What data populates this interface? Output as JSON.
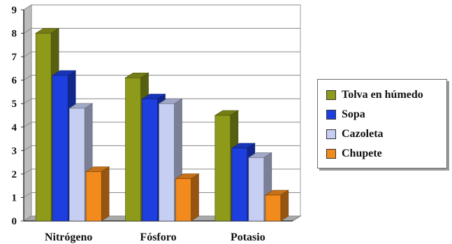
{
  "chart_data": {
    "type": "bar",
    "categories": [
      "Nitrógeno",
      "Fósforo",
      "Potasio"
    ],
    "series": [
      {
        "name": "Tolva en húmedo",
        "values": [
          8,
          6.1,
          4.5
        ],
        "color": "#8d9a1a"
      },
      {
        "name": "Sopa",
        "values": [
          6.2,
          5.2,
          3.1
        ],
        "color": "#1d3fe0"
      },
      {
        "name": "Cazoleta",
        "values": [
          4.8,
          5.0,
          2.7
        ],
        "color": "#c6cef2"
      },
      {
        "name": "Chupete",
        "values": [
          2.1,
          1.8,
          1.1
        ],
        "color": "#f28a1c"
      }
    ],
    "yticks": [
      "0",
      "1",
      "2",
      "3",
      "4",
      "5",
      "6",
      "7",
      "8",
      "9"
    ],
    "ylim": [
      0,
      9
    ],
    "grid": true,
    "legend_position": "right",
    "title": "",
    "xlabel": "",
    "ylabel": ""
  }
}
